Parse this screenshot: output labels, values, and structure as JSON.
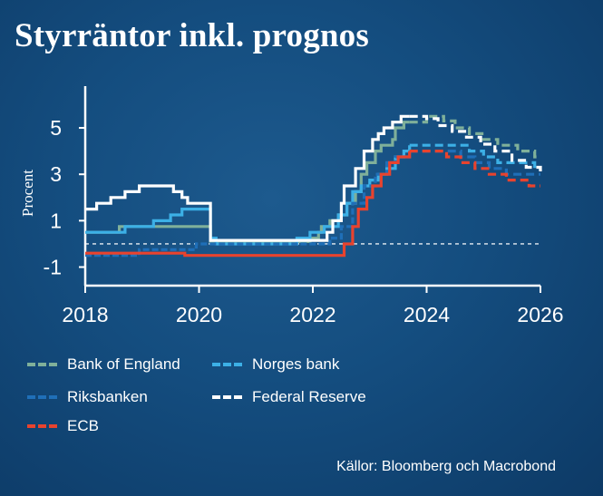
{
  "title": "Styrräntor inkl. prognos",
  "source": "Källor: Bloomberg och Macrobond",
  "colors": {
    "Bank of England": "#7fb09a",
    "Norges bank": "#3cb0e6",
    "Riksbanken": "#1f6fb8",
    "Federal Reserve": "#ffffff",
    "ECB": "#e8432e",
    "zero_line": "#ffffff",
    "axis": "#ffffff"
  },
  "legend": [
    "Bank of England",
    "Norges bank",
    "Riksbanken",
    "Federal Reserve",
    "ECB"
  ],
  "chart_data": {
    "type": "line",
    "title": "Styrräntor inkl. prognos",
    "xlabel": "",
    "ylabel": "Procent",
    "xlim": [
      2018,
      2026
    ],
    "ylim": [
      -1.8,
      6.8
    ],
    "xticks": [
      "2018",
      "2020",
      "2022",
      "2024",
      "2026"
    ],
    "yticks": [
      "-1",
      "1",
      "3",
      "5"
    ],
    "zero_line": true,
    "forecast_start": 2023.7,
    "series": [
      {
        "name": "Bank of England",
        "points": [
          [
            2018,
            0.5
          ],
          [
            2018.5,
            0.5
          ],
          [
            2018.6,
            0.75
          ],
          [
            2020.0,
            0.75
          ],
          [
            2020.2,
            0.1
          ],
          [
            2021.9,
            0.1
          ],
          [
            2021.95,
            0.25
          ],
          [
            2022.1,
            0.5
          ],
          [
            2022.15,
            0.75
          ],
          [
            2022.3,
            1.0
          ],
          [
            2022.45,
            1.25
          ],
          [
            2022.6,
            1.75
          ],
          [
            2022.75,
            2.25
          ],
          [
            2022.85,
            3.0
          ],
          [
            2022.95,
            3.5
          ],
          [
            2023.1,
            4.0
          ],
          [
            2023.2,
            4.25
          ],
          [
            2023.4,
            4.5
          ],
          [
            2023.45,
            5.0
          ],
          [
            2023.6,
            5.25
          ],
          [
            2023.7,
            5.25
          ],
          [
            2024.0,
            5.5
          ],
          [
            2024.3,
            5.3
          ],
          [
            2024.5,
            5.0
          ],
          [
            2024.75,
            4.75
          ],
          [
            2025.0,
            4.5
          ],
          [
            2025.25,
            4.25
          ],
          [
            2025.6,
            4.0
          ],
          [
            2025.9,
            3.75
          ],
          [
            2026.0,
            3.75
          ]
        ]
      },
      {
        "name": "Norges bank",
        "points": [
          [
            2018,
            0.5
          ],
          [
            2018.7,
            0.75
          ],
          [
            2019.2,
            1.0
          ],
          [
            2019.5,
            1.25
          ],
          [
            2019.7,
            1.5
          ],
          [
            2020.15,
            1.5
          ],
          [
            2020.2,
            0.25
          ],
          [
            2020.3,
            0.0
          ],
          [
            2021.7,
            0.0
          ],
          [
            2021.72,
            0.25
          ],
          [
            2021.95,
            0.5
          ],
          [
            2022.2,
            0.75
          ],
          [
            2022.45,
            1.25
          ],
          [
            2022.6,
            1.75
          ],
          [
            2022.7,
            2.25
          ],
          [
            2022.85,
            2.5
          ],
          [
            2023.0,
            2.75
          ],
          [
            2023.15,
            3.0
          ],
          [
            2023.3,
            3.25
          ],
          [
            2023.45,
            3.75
          ],
          [
            2023.6,
            4.0
          ],
          [
            2023.7,
            4.25
          ],
          [
            2024.0,
            4.25
          ],
          [
            2024.5,
            4.25
          ],
          [
            2024.75,
            4.0
          ],
          [
            2025.0,
            3.75
          ],
          [
            2025.25,
            3.5
          ],
          [
            2025.6,
            3.5
          ],
          [
            2025.9,
            3.25
          ],
          [
            2026.0,
            3.25
          ]
        ]
      },
      {
        "name": "Riksbanken",
        "points": [
          [
            2018,
            -0.5
          ],
          [
            2018.95,
            -0.25
          ],
          [
            2019.95,
            0.0
          ],
          [
            2021.95,
            0.0
          ],
          [
            2022.3,
            0.25
          ],
          [
            2022.5,
            0.75
          ],
          [
            2022.7,
            1.75
          ],
          [
            2022.9,
            2.5
          ],
          [
            2023.1,
            3.0
          ],
          [
            2023.3,
            3.5
          ],
          [
            2023.45,
            3.75
          ],
          [
            2023.7,
            4.0
          ],
          [
            2024.0,
            4.0
          ],
          [
            2024.3,
            4.0
          ],
          [
            2024.6,
            3.75
          ],
          [
            2024.85,
            3.5
          ],
          [
            2025.1,
            3.25
          ],
          [
            2025.4,
            3.0
          ],
          [
            2025.8,
            3.0
          ],
          [
            2026.0,
            3.0
          ]
        ]
      },
      {
        "name": "Federal Reserve",
        "points": [
          [
            2018,
            1.5
          ],
          [
            2018.2,
            1.75
          ],
          [
            2018.45,
            2.0
          ],
          [
            2018.7,
            2.25
          ],
          [
            2018.95,
            2.5
          ],
          [
            2019.55,
            2.25
          ],
          [
            2019.7,
            2.0
          ],
          [
            2019.8,
            1.75
          ],
          [
            2020.15,
            1.75
          ],
          [
            2020.2,
            0.15
          ],
          [
            2022.2,
            0.15
          ],
          [
            2022.25,
            0.5
          ],
          [
            2022.35,
            1.0
          ],
          [
            2022.5,
            1.75
          ],
          [
            2022.55,
            2.5
          ],
          [
            2022.75,
            3.25
          ],
          [
            2022.9,
            4.0
          ],
          [
            2023.05,
            4.5
          ],
          [
            2023.15,
            4.75
          ],
          [
            2023.25,
            5.0
          ],
          [
            2023.4,
            5.25
          ],
          [
            2023.55,
            5.5
          ],
          [
            2023.7,
            5.5
          ],
          [
            2024.0,
            5.4
          ],
          [
            2024.2,
            5.1
          ],
          [
            2024.45,
            4.85
          ],
          [
            2024.7,
            4.6
          ],
          [
            2024.95,
            4.3
          ],
          [
            2025.2,
            4.0
          ],
          [
            2025.5,
            3.6
          ],
          [
            2025.75,
            3.3
          ],
          [
            2026.0,
            3.0
          ]
        ]
      },
      {
        "name": "ECB",
        "points": [
          [
            2018,
            -0.4
          ],
          [
            2019.7,
            -0.4
          ],
          [
            2019.75,
            -0.5
          ],
          [
            2022.5,
            -0.5
          ],
          [
            2022.55,
            0.0
          ],
          [
            2022.7,
            0.75
          ],
          [
            2022.8,
            1.5
          ],
          [
            2022.95,
            2.0
          ],
          [
            2023.05,
            2.5
          ],
          [
            2023.2,
            3.0
          ],
          [
            2023.35,
            3.5
          ],
          [
            2023.5,
            3.75
          ],
          [
            2023.7,
            4.0
          ],
          [
            2024.0,
            4.0
          ],
          [
            2024.35,
            3.75
          ],
          [
            2024.6,
            3.5
          ],
          [
            2024.85,
            3.25
          ],
          [
            2025.1,
            3.0
          ],
          [
            2025.4,
            2.75
          ],
          [
            2025.8,
            2.5
          ],
          [
            2026.0,
            2.5
          ]
        ]
      }
    ]
  }
}
